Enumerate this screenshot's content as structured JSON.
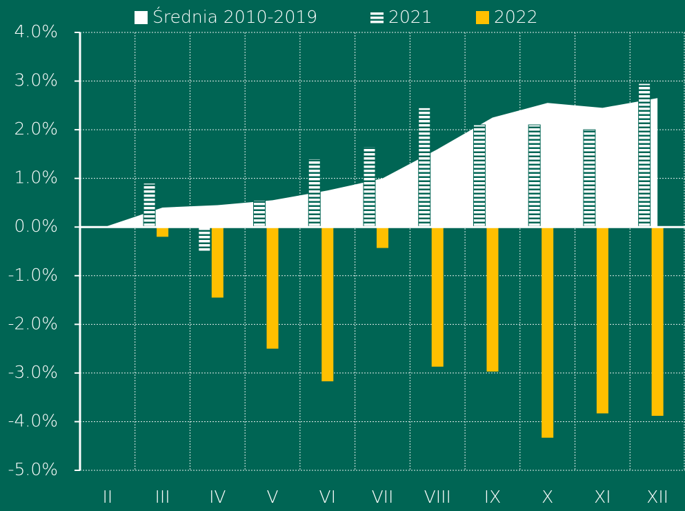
{
  "chart_data": {
    "type": "bar",
    "categories": [
      "II",
      "III",
      "IV",
      "V",
      "VI",
      "VII",
      "VIII",
      "IX",
      "X",
      "XI",
      "XII"
    ],
    "series": [
      {
        "name": "Średnia 2010-2019",
        "type": "area",
        "color": "#ffffff",
        "values": [
          0.02,
          0.4,
          0.45,
          0.55,
          0.75,
          1.0,
          1.6,
          2.25,
          2.55,
          2.45,
          2.65
        ]
      },
      {
        "name": "2021",
        "type": "bar",
        "color": "#ffffff",
        "values": [
          null,
          0.9,
          -0.5,
          0.55,
          1.4,
          1.65,
          2.45,
          2.1,
          2.1,
          2.0,
          2.95
        ]
      },
      {
        "name": "2022",
        "type": "bar",
        "color": "#ffc000",
        "values": [
          null,
          -0.2,
          -1.45,
          -2.5,
          -3.17,
          -0.43,
          -2.87,
          -2.97,
          -4.33,
          -3.83,
          -3.88
        ]
      }
    ],
    "ylim": [
      -5,
      4
    ],
    "yticks": [
      {
        "value": 4,
        "label": "4.0%"
      },
      {
        "value": 3,
        "label": "3.0%"
      },
      {
        "value": 2,
        "label": "2.0%"
      },
      {
        "value": 1,
        "label": "1.0%"
      },
      {
        "value": 0,
        "label": "0.0%"
      },
      {
        "value": -1,
        "label": "-1.0%"
      },
      {
        "value": -2,
        "label": "-2.0%"
      },
      {
        "value": -3,
        "label": "-3.0%"
      },
      {
        "value": -4,
        "label": "-4.0%"
      },
      {
        "value": -5,
        "label": "-5.0%"
      }
    ],
    "grid": true,
    "legend": "top"
  }
}
